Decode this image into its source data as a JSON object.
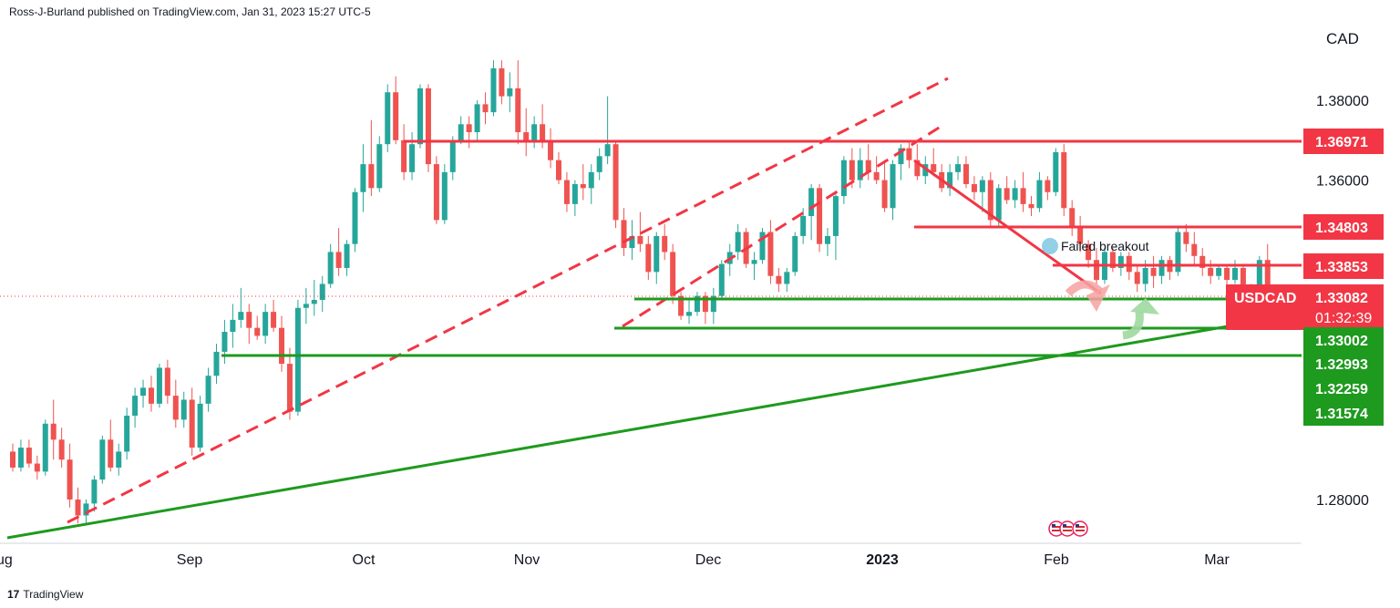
{
  "header": {
    "attribution": "Ross-J-Burland published on TradingView.com, Jan 31, 2023 15:27 UTC-5"
  },
  "footer": {
    "logo_glyph": "17",
    "brand": "TradingView"
  },
  "chart_data": {
    "type": "candlestick",
    "symbol": "USDCAD",
    "currency_label": "CAD",
    "y_axis_ticks": [
      "1.38000",
      "1.36000",
      "1.28000"
    ],
    "x_axis_labels": [
      "ug",
      "Sep",
      "Oct",
      "Nov",
      "Dec",
      "2023",
      "Feb",
      "Mar"
    ],
    "ylim": [
      1.27,
      1.4017
    ],
    "colors": {
      "up": "#26a69a",
      "down": "#ef5350",
      "resistance": "#f23645",
      "support": "#1e9a1e"
    },
    "candles": [
      [
        1.292,
        1.294,
        1.287,
        1.288
      ],
      [
        1.288,
        1.295,
        1.287,
        1.293
      ],
      [
        1.293,
        1.295,
        1.288,
        1.289
      ],
      [
        1.289,
        1.291,
        1.285,
        1.287
      ],
      [
        1.287,
        1.3,
        1.286,
        1.299
      ],
      [
        1.299,
        1.305,
        1.29,
        1.295
      ],
      [
        1.295,
        1.298,
        1.288,
        1.29
      ],
      [
        1.29,
        1.294,
        1.278,
        1.28
      ],
      [
        1.28,
        1.283,
        1.274,
        1.276
      ],
      [
        1.276,
        1.28,
        1.274,
        1.279
      ],
      [
        1.279,
        1.286,
        1.277,
        1.285
      ],
      [
        1.285,
        1.296,
        1.284,
        1.295
      ],
      [
        1.295,
        1.3,
        1.287,
        1.288
      ],
      [
        1.288,
        1.294,
        1.286,
        1.292
      ],
      [
        1.292,
        1.303,
        1.29,
        1.301
      ],
      [
        1.301,
        1.308,
        1.298,
        1.306
      ],
      [
        1.306,
        1.31,
        1.303,
        1.308
      ],
      [
        1.308,
        1.311,
        1.302,
        1.304
      ],
      [
        1.304,
        1.314,
        1.303,
        1.313
      ],
      [
        1.313,
        1.315,
        1.304,
        1.306
      ],
      [
        1.306,
        1.31,
        1.298,
        1.3
      ],
      [
        1.3,
        1.307,
        1.298,
        1.305
      ],
      [
        1.305,
        1.308,
        1.291,
        1.293
      ],
      [
        1.293,
        1.306,
        1.292,
        1.304
      ],
      [
        1.304,
        1.313,
        1.302,
        1.311
      ],
      [
        1.311,
        1.319,
        1.309,
        1.317
      ],
      [
        1.317,
        1.325,
        1.314,
        1.322
      ],
      [
        1.322,
        1.329,
        1.318,
        1.325
      ],
      [
        1.325,
        1.333,
        1.323,
        1.327
      ],
      [
        1.327,
        1.329,
        1.319,
        1.323
      ],
      [
        1.323,
        1.326,
        1.32,
        1.321
      ],
      [
        1.321,
        1.329,
        1.319,
        1.327
      ],
      [
        1.327,
        1.33,
        1.322,
        1.323
      ],
      [
        1.323,
        1.326,
        1.312,
        1.314
      ],
      [
        1.314,
        1.318,
        1.3,
        1.302
      ],
      [
        1.302,
        1.33,
        1.301,
        1.328
      ],
      [
        1.328,
        1.333,
        1.324,
        1.329
      ],
      [
        1.329,
        1.335,
        1.326,
        1.33
      ],
      [
        1.33,
        1.336,
        1.327,
        1.334
      ],
      [
        1.334,
        1.344,
        1.333,
        1.342
      ],
      [
        1.342,
        1.348,
        1.336,
        1.338
      ],
      [
        1.338,
        1.345,
        1.336,
        1.344
      ],
      [
        1.344,
        1.358,
        1.342,
        1.357
      ],
      [
        1.357,
        1.369,
        1.352,
        1.364
      ],
      [
        1.364,
        1.375,
        1.356,
        1.358
      ],
      [
        1.358,
        1.371,
        1.357,
        1.369
      ],
      [
        1.369,
        1.384,
        1.367,
        1.382
      ],
      [
        1.382,
        1.386,
        1.369,
        1.37
      ],
      [
        1.37,
        1.374,
        1.36,
        1.362
      ],
      [
        1.362,
        1.372,
        1.36,
        1.369
      ],
      [
        1.369,
        1.384,
        1.368,
        1.383
      ],
      [
        1.383,
        1.384,
        1.362,
        1.364
      ],
      [
        1.364,
        1.366,
        1.349,
        1.35
      ],
      [
        1.35,
        1.364,
        1.349,
        1.362
      ],
      [
        1.362,
        1.371,
        1.36,
        1.37
      ],
      [
        1.37,
        1.376,
        1.369,
        1.374
      ],
      [
        1.374,
        1.376,
        1.368,
        1.372
      ],
      [
        1.372,
        1.38,
        1.37,
        1.379
      ],
      [
        1.379,
        1.382,
        1.374,
        1.377
      ],
      [
        1.377,
        1.39,
        1.376,
        1.388
      ],
      [
        1.388,
        1.39,
        1.379,
        1.381
      ],
      [
        1.381,
        1.387,
        1.377,
        1.383
      ],
      [
        1.383,
        1.39,
        1.369,
        1.372
      ],
      [
        1.372,
        1.378,
        1.366,
        1.37
      ],
      [
        1.37,
        1.376,
        1.368,
        1.374
      ],
      [
        1.374,
        1.379,
        1.368,
        1.37
      ],
      [
        1.37,
        1.373,
        1.363,
        1.365
      ],
      [
        1.365,
        1.367,
        1.359,
        1.36
      ],
      [
        1.36,
        1.362,
        1.352,
        1.354
      ],
      [
        1.354,
        1.36,
        1.351,
        1.359
      ],
      [
        1.359,
        1.364,
        1.355,
        1.358
      ],
      [
        1.358,
        1.364,
        1.354,
        1.362
      ],
      [
        1.362,
        1.368,
        1.36,
        1.366
      ],
      [
        1.366,
        1.381,
        1.364,
        1.369
      ],
      [
        1.369,
        1.37,
        1.348,
        1.35
      ],
      [
        1.35,
        1.353,
        1.341,
        1.343
      ],
      [
        1.343,
        1.35,
        1.34,
        1.346
      ],
      [
        1.346,
        1.352,
        1.342,
        1.344
      ],
      [
        1.344,
        1.346,
        1.335,
        1.337
      ],
      [
        1.337,
        1.347,
        1.334,
        1.346
      ],
      [
        1.346,
        1.349,
        1.34,
        1.342
      ],
      [
        1.342,
        1.344,
        1.329,
        1.331
      ],
      [
        1.331,
        1.332,
        1.325,
        1.326
      ],
      [
        1.326,
        1.33,
        1.324,
        1.327
      ],
      [
        1.327,
        1.332,
        1.326,
        1.331
      ],
      [
        1.331,
        1.332,
        1.324,
        1.327
      ],
      [
        1.327,
        1.333,
        1.324,
        1.331
      ],
      [
        1.331,
        1.34,
        1.33,
        1.339
      ],
      [
        1.339,
        1.344,
        1.336,
        1.342
      ],
      [
        1.342,
        1.349,
        1.34,
        1.347
      ],
      [
        1.347,
        1.348,
        1.338,
        1.339
      ],
      [
        1.339,
        1.342,
        1.335,
        1.34
      ],
      [
        1.34,
        1.348,
        1.339,
        1.347
      ],
      [
        1.347,
        1.35,
        1.334,
        1.336
      ],
      [
        1.336,
        1.338,
        1.332,
        1.334
      ],
      [
        1.334,
        1.338,
        1.332,
        1.337
      ],
      [
        1.337,
        1.347,
        1.336,
        1.346
      ],
      [
        1.346,
        1.353,
        1.344,
        1.351
      ],
      [
        1.351,
        1.359,
        1.345,
        1.358
      ],
      [
        1.358,
        1.359,
        1.342,
        1.344
      ],
      [
        1.344,
        1.348,
        1.341,
        1.346
      ],
      [
        1.346,
        1.357,
        1.34,
        1.356
      ],
      [
        1.356,
        1.366,
        1.354,
        1.365
      ],
      [
        1.365,
        1.368,
        1.358,
        1.36
      ],
      [
        1.36,
        1.368,
        1.358,
        1.365
      ],
      [
        1.365,
        1.369,
        1.36,
        1.362
      ],
      [
        1.362,
        1.366,
        1.359,
        1.36
      ],
      [
        1.36,
        1.365,
        1.352,
        1.353
      ],
      [
        1.353,
        1.365,
        1.35,
        1.364
      ],
      [
        1.364,
        1.369,
        1.36,
        1.368
      ],
      [
        1.368,
        1.37,
        1.363,
        1.365
      ],
      [
        1.365,
        1.369,
        1.36,
        1.361
      ],
      [
        1.361,
        1.366,
        1.359,
        1.364
      ],
      [
        1.364,
        1.368,
        1.361,
        1.362
      ],
      [
        1.362,
        1.364,
        1.357,
        1.358
      ],
      [
        1.358,
        1.364,
        1.356,
        1.362
      ],
      [
        1.362,
        1.366,
        1.36,
        1.364
      ],
      [
        1.364,
        1.366,
        1.358,
        1.359
      ],
      [
        1.359,
        1.361,
        1.355,
        1.357
      ],
      [
        1.357,
        1.361,
        1.352,
        1.36
      ],
      [
        1.36,
        1.362,
        1.348,
        1.35
      ],
      [
        1.35,
        1.359,
        1.348,
        1.358
      ],
      [
        1.358,
        1.361,
        1.354,
        1.355
      ],
      [
        1.355,
        1.36,
        1.353,
        1.358
      ],
      [
        1.358,
        1.362,
        1.352,
        1.354
      ],
      [
        1.354,
        1.356,
        1.351,
        1.353
      ],
      [
        1.353,
        1.362,
        1.352,
        1.36
      ],
      [
        1.36,
        1.361,
        1.355,
        1.357
      ],
      [
        1.357,
        1.368,
        1.356,
        1.367
      ],
      [
        1.367,
        1.369,
        1.351,
        1.353
      ],
      [
        1.353,
        1.355,
        1.346,
        1.348
      ],
      [
        1.348,
        1.351,
        1.342,
        1.344
      ],
      [
        1.344,
        1.345,
        1.338,
        1.34
      ],
      [
        1.34,
        1.343,
        1.334,
        1.335
      ],
      [
        1.335,
        1.343,
        1.334,
        1.342
      ],
      [
        1.342,
        1.343,
        1.337,
        1.338
      ],
      [
        1.338,
        1.342,
        1.336,
        1.341
      ],
      [
        1.341,
        1.342,
        1.335,
        1.337
      ],
      [
        1.337,
        1.339,
        1.332,
        1.334
      ],
      [
        1.334,
        1.34,
        1.332,
        1.338
      ],
      [
        1.338,
        1.341,
        1.333,
        1.336
      ],
      [
        1.336,
        1.341,
        1.334,
        1.34
      ],
      [
        1.34,
        1.341,
        1.335,
        1.337
      ],
      [
        1.337,
        1.348,
        1.336,
        1.347
      ],
      [
        1.347,
        1.349,
        1.342,
        1.344
      ],
      [
        1.344,
        1.347,
        1.339,
        1.341
      ],
      [
        1.341,
        1.343,
        1.336,
        1.338
      ],
      [
        1.338,
        1.34,
        1.334,
        1.336
      ],
      [
        1.336,
        1.339,
        1.335,
        1.338
      ],
      [
        1.338,
        1.339,
        1.333,
        1.335
      ],
      [
        1.335,
        1.34,
        1.334,
        1.338
      ],
      [
        1.338,
        1.339,
        1.331,
        1.332
      ],
      [
        1.332,
        1.334,
        1.331,
        1.333
      ],
      [
        1.333,
        1.341,
        1.332,
        1.34
      ],
      [
        1.34,
        1.344,
        1.33,
        1.3308
      ]
    ],
    "resistance_levels": [
      {
        "label": "1.36971",
        "value": 1.36971,
        "color": "#f23645"
      },
      {
        "label": "1.34803",
        "value": 1.34803,
        "color": "#f23645"
      },
      {
        "label": "1.33853",
        "value": 1.33853,
        "color": "#f23645"
      }
    ],
    "support_levels": [
      {
        "label": "1.33002",
        "value": 1.33002,
        "color": "#1e9a1e"
      },
      {
        "label": "1.32993",
        "value": 1.32993,
        "color": "#1e9a1e"
      },
      {
        "label": "1.32259",
        "value": 1.32259,
        "color": "#1e9a1e"
      },
      {
        "label": "1.31574",
        "value": 1.31574,
        "color": "#1e9a1e"
      }
    ],
    "current_price": {
      "symbol": "USDCAD",
      "value": "1.33082",
      "countdown": "01:32:39",
      "color": "#f23645"
    },
    "annotation": "Failed breakout"
  }
}
